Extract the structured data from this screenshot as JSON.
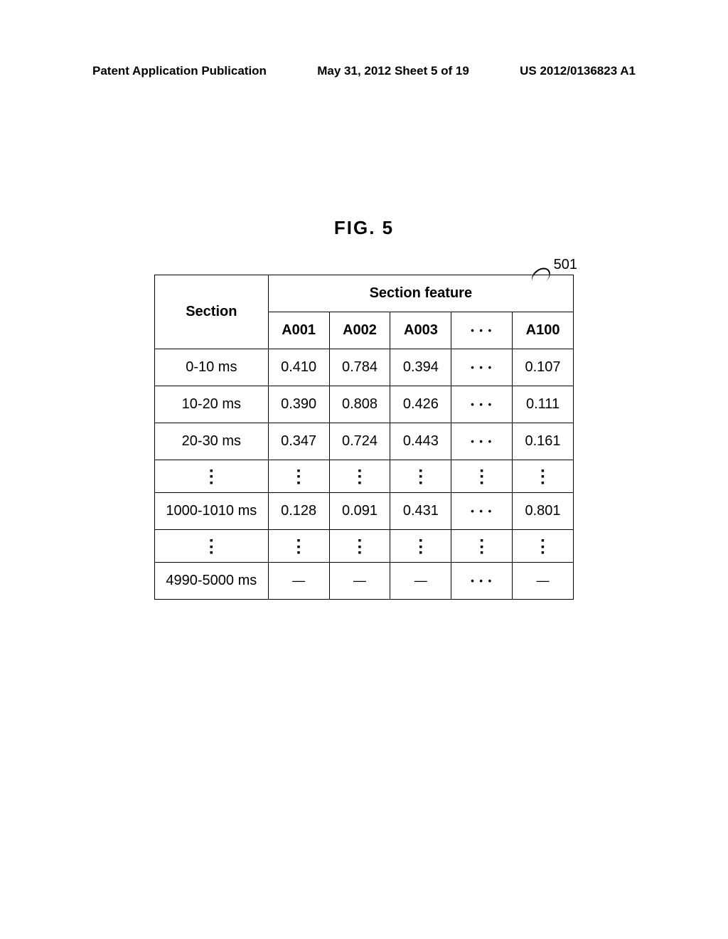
{
  "header": {
    "left": "Patent Application Publication",
    "center": "May 31, 2012  Sheet 5 of 19",
    "right": "US 2012/0136823 A1"
  },
  "figure": {
    "title": "FIG. 5",
    "reference_number": "501"
  },
  "table": {
    "section_header": "Section",
    "feature_header": "Section feature",
    "columns": [
      "A001",
      "A002",
      "A003",
      "…",
      "A100"
    ],
    "hdots": "• • •",
    "vdots": "▪\n▪\n▪",
    "dash": "—",
    "rows": [
      {
        "section": "0-10 ms",
        "values": [
          "0.410",
          "0.784",
          "0.394",
          "• • •",
          "0.107"
        ]
      },
      {
        "section": "10-20 ms",
        "values": [
          "0.390",
          "0.808",
          "0.426",
          "• • •",
          "0.111"
        ]
      },
      {
        "section": "20-30 ms",
        "values": [
          "0.347",
          "0.724",
          "0.443",
          "• • •",
          "0.161"
        ]
      },
      {
        "section": "1000-1010 ms",
        "values": [
          "0.128",
          "0.091",
          "0.431",
          "• • •",
          "0.801"
        ]
      },
      {
        "section": "4990-5000 ms",
        "values": [
          "—",
          "—",
          "—",
          "• • •",
          "—"
        ]
      }
    ]
  }
}
